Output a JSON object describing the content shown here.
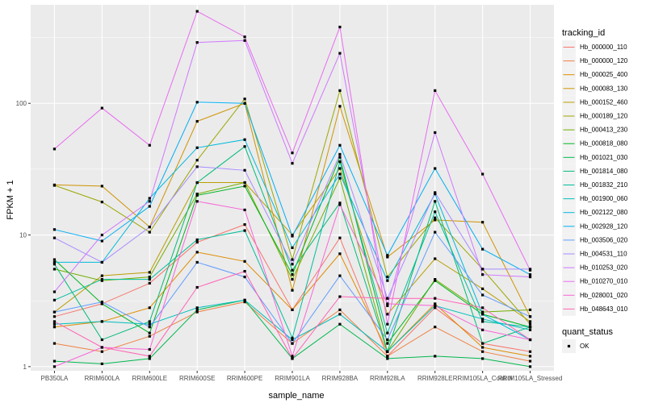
{
  "chart_data": {
    "type": "line",
    "title": "",
    "xlabel": "sample_name",
    "ylabel": "FPKM + 1",
    "y_scale": "log10",
    "ylim": [
      0.93,
      560
    ],
    "y_ticks": [
      1,
      10,
      100
    ],
    "y_tick_labels": [
      "1",
      "10",
      "100"
    ],
    "grid": true,
    "background": "#EBEBEB",
    "categories": [
      "PB350LA",
      "RRIM600LA",
      "RRIM600LE",
      "RRIM600SE",
      "RRIM600PE",
      "RRIM901LA",
      "RRIM928BA",
      "RRIM928LA",
      "RRIM928LE",
      "RRIM105LA_Control",
      "RRIM105LA_Stressed"
    ],
    "x_tick_labels": [
      "PB350LA",
      "RRIM600LA",
      "RRIM600LE",
      "RRIM600SE",
      "RRIM600PE",
      "RRIM901LA",
      "RRIM928BA",
      "RRIM928LA",
      "RRIM928LE",
      "RRIM105LA_Control",
      "RRIM105LA_Stressed"
    ],
    "legend": {
      "title": "tracking_id",
      "position": "right",
      "shape_title": "quant_status",
      "shape_entries": [
        "OK"
      ]
    },
    "series": [
      {
        "name": "Hb_000000_110",
        "color": "#F8766D",
        "values": [
          2.4,
          3.0,
          4.3,
          8.8,
          12.0,
          2.7,
          9.5,
          1.2,
          2.8,
          1.5,
          1.3
        ]
      },
      {
        "name": "Hb_000000_120",
        "color": "#EE8043",
        "values": [
          1.5,
          1.3,
          1.7,
          2.6,
          3.1,
          1.5,
          2.7,
          1.2,
          2.0,
          1.3,
          1.1
        ]
      },
      {
        "name": "Hb_000025_400",
        "color": "#E08B00",
        "values": [
          2.0,
          2.2,
          2.8,
          7.4,
          6.3,
          2.7,
          7.2,
          1.3,
          3.0,
          1.4,
          1.2
        ]
      },
      {
        "name": "Hb_000083_130",
        "color": "#CF9400",
        "values": [
          24.0,
          23.5,
          11.5,
          73.0,
          100.0,
          3.8,
          95.0,
          6.8,
          13.0,
          12.5,
          2.4
        ]
      },
      {
        "name": "Hb_000152_460",
        "color": "#B99E00",
        "values": [
          2.6,
          4.9,
          5.2,
          25.0,
          25.0,
          10.0,
          32.0,
          2.5,
          6.6,
          3.9,
          2.2
        ]
      },
      {
        "name": "Hb_000189_120",
        "color": "#9CA700",
        "values": [
          23.8,
          17.8,
          10.5,
          37.0,
          108.0,
          6.5,
          125.0,
          4.8,
          13.5,
          5.5,
          2.1
        ]
      },
      {
        "name": "Hb_000413_230",
        "color": "#72AE00",
        "values": [
          5.5,
          4.5,
          4.8,
          20.5,
          25.0,
          4.6,
          27.0,
          1.3,
          4.6,
          2.6,
          2.7
        ]
      },
      {
        "name": "Hb_000818_080",
        "color": "#00B520",
        "values": [
          6.5,
          3.0,
          1.8,
          20.0,
          23.5,
          5.0,
          39.0,
          1.5,
          4.5,
          2.5,
          2.0
        ]
      },
      {
        "name": "Hb_001021_030",
        "color": "#00B84E",
        "values": [
          1.1,
          1.05,
          1.15,
          2.7,
          3.2,
          1.15,
          2.1,
          1.15,
          1.2,
          1.15,
          1.0
        ]
      },
      {
        "name": "Hb_001814_080",
        "color": "#00BC78",
        "values": [
          6.0,
          1.6,
          2.2,
          25.0,
          47.0,
          5.4,
          17.5,
          1.3,
          18.0,
          1.5,
          2.0
        ]
      },
      {
        "name": "Hb_001832_210",
        "color": "#00BE9B",
        "values": [
          3.2,
          4.6,
          4.6,
          9.2,
          10.8,
          1.65,
          36.0,
          1.8,
          15.0,
          2.2,
          2.0
        ]
      },
      {
        "name": "Hb_001900_060",
        "color": "#00BFBC",
        "values": [
          2.1,
          2.2,
          2.1,
          2.8,
          3.2,
          1.6,
          2.5,
          1.3,
          2.9,
          2.3,
          1.9
        ]
      },
      {
        "name": "Hb_002122_080",
        "color": "#00BADB",
        "values": [
          6.2,
          6.2,
          19.0,
          46.0,
          53.0,
          8.0,
          29.0,
          4.5,
          20.5,
          2.5,
          1.6
        ]
      },
      {
        "name": "Hb_002928_120",
        "color": "#00AEF3",
        "values": [
          11.0,
          9.0,
          16.5,
          102.0,
          100.0,
          9.8,
          48.0,
          7.0,
          32.0,
          7.8,
          5.0
        ]
      },
      {
        "name": "Hb_003506_020",
        "color": "#619CFF",
        "values": [
          2.6,
          3.1,
          2.0,
          6.2,
          4.8,
          1.5,
          4.9,
          1.6,
          10.5,
          3.5,
          2.4
        ]
      },
      {
        "name": "Hb_004531_110",
        "color": "#A88BFF",
        "values": [
          9.5,
          6.2,
          11.5,
          33.0,
          31.0,
          6.0,
          41.0,
          3.3,
          21.0,
          5.5,
          5.5
        ]
      },
      {
        "name": "Hb_010253_020",
        "color": "#D078FF",
        "values": [
          3.7,
          10.0,
          18.0,
          290.0,
          300.0,
          35.0,
          240.0,
          2.9,
          60.0,
          5.0,
          4.8
        ]
      },
      {
        "name": "Hb_010270_010",
        "color": "#E96BF0",
        "values": [
          45.0,
          92.0,
          48.0,
          500.0,
          320.0,
          42.0,
          380.0,
          2.1,
          125.0,
          29.0,
          5.4
        ]
      },
      {
        "name": "Hb_028001_020",
        "color": "#F766D8",
        "values": [
          1.0,
          1.4,
          1.35,
          18.0,
          15.5,
          1.2,
          17.0,
          3.0,
          2.9,
          1.9,
          1.6
        ]
      },
      {
        "name": "Hb_048643_010",
        "color": "#FF63B6",
        "values": [
          2.2,
          1.4,
          1.2,
          4.0,
          5.3,
          1.15,
          3.4,
          3.3,
          3.3,
          2.8,
          1.6
        ]
      }
    ]
  }
}
